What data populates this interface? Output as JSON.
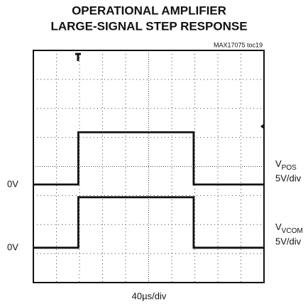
{
  "chart_data": {
    "type": "line",
    "title": [
      "OPERATIONAL AMPLIFIER",
      "LARGE-SIGNAL STEP RESPONSE"
    ],
    "figure_id": "MAX17075 toc19",
    "x_label": "40µs/div",
    "xlim": [
      0,
      400
    ],
    "x": [
      0,
      78,
      78,
      278,
      278,
      400
    ],
    "series": [
      {
        "label": {
          "symbol": "V",
          "subscript": "POS"
        },
        "scale": "5V/div",
        "zero_label": "0V",
        "color": "#111111",
        "ylim": [
          -16.9,
          23.1
        ],
        "values": [
          0,
          0,
          9,
          9,
          0,
          0
        ]
      },
      {
        "label": {
          "symbol": "V",
          "subscript": "VCOM"
        },
        "scale": "5V/div",
        "zero_label": "0V",
        "color": "#111111",
        "ylim": [
          -6,
          34
        ],
        "values": [
          0,
          0,
          8.7,
          8.7,
          0,
          0
        ]
      }
    ]
  }
}
